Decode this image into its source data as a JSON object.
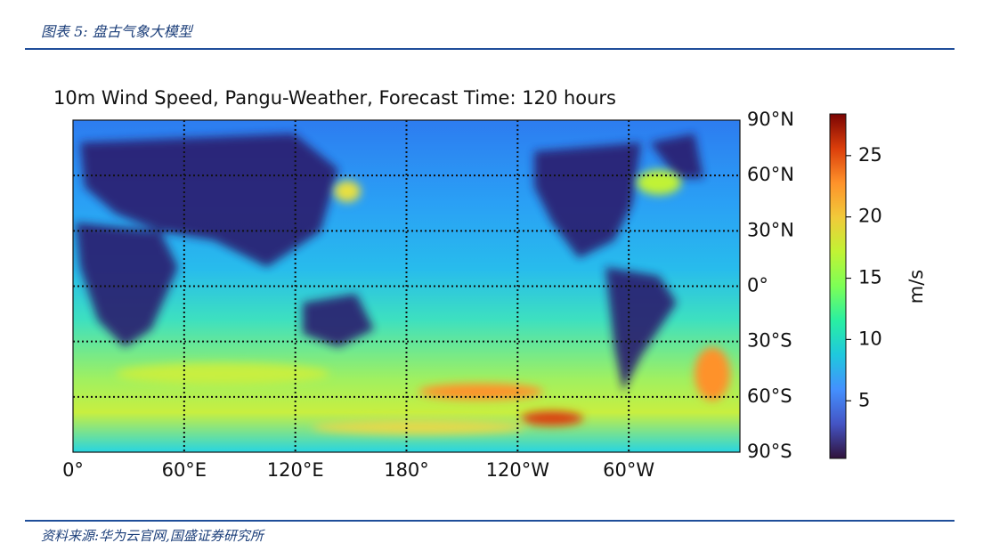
{
  "header": {
    "title": "图表 5:  盘古气象大模型"
  },
  "figure": {
    "title": "10m Wind Speed, Pangu-Weather, Forecast Time: 120 hours",
    "x_labels": [
      "0°",
      "60°E",
      "120°E",
      "180°",
      "120°W",
      "60°W"
    ],
    "y_labels": [
      "90°N",
      "60°N",
      "30°N",
      "0°",
      "30°S",
      "60°S",
      "90°S"
    ],
    "colorbar": {
      "label": "m/s",
      "lim": [
        0.3,
        28.4
      ],
      "ticks": [
        5,
        10,
        15,
        20,
        25
      ]
    }
  },
  "source": "资料来源:华为云官网,国盛证券研究所"
}
